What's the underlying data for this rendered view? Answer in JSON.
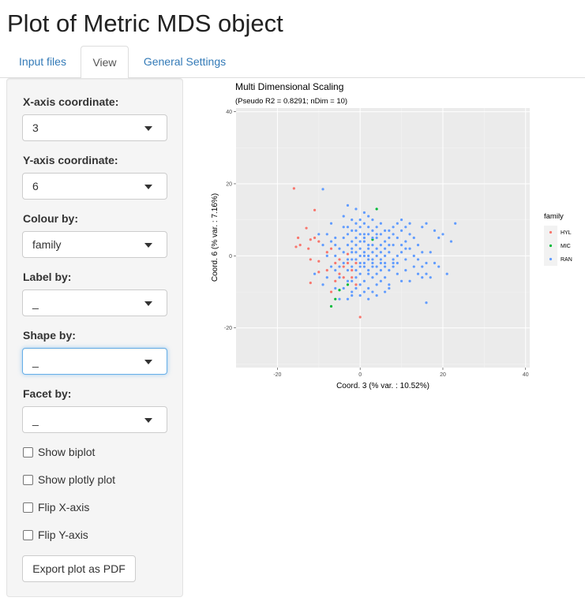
{
  "page": {
    "title": "Plot of Metric MDS object"
  },
  "tabs": [
    {
      "label": "Input files",
      "active": false
    },
    {
      "label": "View",
      "active": true
    },
    {
      "label": "General Settings",
      "active": false
    }
  ],
  "sidebar": {
    "x_axis": {
      "label": "X-axis coordinate:",
      "value": "3"
    },
    "y_axis": {
      "label": "Y-axis coordinate:",
      "value": "6"
    },
    "colour_by": {
      "label": "Colour by:",
      "value": "family"
    },
    "label_by": {
      "label": "Label by:",
      "value": "_"
    },
    "shape_by": {
      "label": "Shape by:",
      "value": "_"
    },
    "facet_by": {
      "label": "Facet by:",
      "value": "_"
    },
    "checkboxes": [
      {
        "label": "Show biplot",
        "checked": false
      },
      {
        "label": "Show plotly plot",
        "checked": false
      },
      {
        "label": "Flip X-axis",
        "checked": false
      },
      {
        "label": "Flip Y-axis",
        "checked": false
      }
    ],
    "export_label": "Export plot as PDF"
  },
  "chart_data": {
    "type": "scatter",
    "title": "Multi Dimensional Scaling",
    "subtitle": "(Pseudo R2 = 0.8291; nDim = 10)",
    "xlabel": "Coord. 3 (% var. : 10.52%)",
    "ylabel": "Coord. 6 (% var. : 7.16%)",
    "xlim": [
      -30,
      41
    ],
    "ylim": [
      -31,
      41
    ],
    "x_ticks": [
      -20,
      0,
      20,
      40
    ],
    "y_ticks": [
      -20,
      0,
      20,
      40
    ],
    "grid": true,
    "legend_position": "right",
    "legend_title": "family",
    "series": [
      {
        "name": "HYL",
        "color": "#F8766D",
        "points": [
          [
            -16,
            18.7
          ],
          [
            -11,
            12.7
          ],
          [
            -15,
            5
          ],
          [
            -14.5,
            3
          ],
          [
            -13,
            7.7
          ],
          [
            -15.5,
            2.5
          ],
          [
            -12.5,
            2
          ],
          [
            -12,
            4.5
          ],
          [
            -11,
            5
          ],
          [
            -10,
            4
          ],
          [
            -12,
            -1
          ],
          [
            -10,
            -1.5
          ],
          [
            -10,
            -4.5
          ],
          [
            -12,
            -7.5
          ],
          [
            -8,
            1
          ],
          [
            -7,
            2
          ],
          [
            -5,
            -1
          ],
          [
            -4,
            -3
          ],
          [
            -3,
            0.5
          ],
          [
            -6,
            -2
          ],
          [
            -2,
            -6
          ],
          [
            -1,
            -8
          ],
          [
            -4,
            -6
          ],
          [
            -2,
            -4
          ],
          [
            -5,
            -5
          ],
          [
            -3,
            -2
          ],
          [
            0,
            -17
          ],
          [
            -7,
            -10
          ],
          [
            -8,
            -4
          ],
          [
            -6,
            -7
          ],
          [
            -1,
            -2
          ]
        ]
      },
      {
        "name": "MIC",
        "color": "#00BA38",
        "points": [
          [
            4,
            13
          ],
          [
            3,
            4.5
          ],
          [
            -3,
            -8
          ],
          [
            -5,
            -9.5
          ],
          [
            -6,
            -12
          ],
          [
            -7,
            -14
          ]
        ]
      },
      {
        "name": "RAN",
        "color": "#619CFF",
        "points": [
          [
            -9,
            18.5
          ],
          [
            -3,
            14
          ],
          [
            -4,
            11
          ],
          [
            -2,
            10
          ],
          [
            -1,
            13
          ],
          [
            1,
            12
          ],
          [
            0,
            10
          ],
          [
            2,
            8
          ],
          [
            -7,
            9
          ],
          [
            -8,
            6
          ],
          [
            -6,
            5
          ],
          [
            -9,
            3
          ],
          [
            -10,
            6
          ],
          [
            -2,
            7
          ],
          [
            -1,
            5
          ],
          [
            0,
            6
          ],
          [
            1,
            4
          ],
          [
            2,
            2
          ],
          [
            3,
            1
          ],
          [
            4,
            0
          ],
          [
            5,
            -1
          ],
          [
            6,
            -2
          ],
          [
            7,
            1
          ],
          [
            8,
            3
          ],
          [
            9,
            5
          ],
          [
            10,
            7
          ],
          [
            11,
            4
          ],
          [
            12,
            2
          ],
          [
            13,
            0
          ],
          [
            14,
            -1
          ],
          [
            15,
            -3
          ],
          [
            16,
            -5
          ],
          [
            16,
            9
          ],
          [
            18,
            7
          ],
          [
            20,
            6
          ],
          [
            19,
            5
          ],
          [
            21,
            -5
          ],
          [
            22,
            4
          ],
          [
            23,
            9
          ],
          [
            -5,
            2
          ],
          [
            -4,
            1
          ],
          [
            -3,
            -1
          ],
          [
            -2,
            -3
          ],
          [
            -1,
            -1
          ],
          [
            0,
            0
          ],
          [
            1,
            -2
          ],
          [
            2,
            -4
          ],
          [
            3,
            -6
          ],
          [
            4,
            -8
          ],
          [
            5,
            -4
          ],
          [
            6,
            -6
          ],
          [
            7,
            -9
          ],
          [
            8,
            -3
          ],
          [
            9,
            -2
          ],
          [
            10,
            1
          ],
          [
            11,
            -4
          ],
          [
            12,
            -7
          ],
          [
            -6,
            0
          ],
          [
            -7,
            -3
          ],
          [
            -8,
            -6
          ],
          [
            -9,
            -8
          ],
          [
            -5,
            -6
          ],
          [
            -4,
            -9
          ],
          [
            -3,
            -4
          ],
          [
            -2,
            1
          ],
          [
            -1,
            3
          ],
          [
            0,
            2
          ],
          [
            1,
            0
          ],
          [
            2,
            -1
          ],
          [
            3,
            3
          ],
          [
            4,
            5
          ],
          [
            5,
            6
          ],
          [
            6,
            4
          ],
          [
            7,
            7
          ],
          [
            8,
            8
          ],
          [
            9,
            9
          ],
          [
            10,
            10
          ],
          [
            -3,
            3
          ],
          [
            -2,
            4
          ],
          [
            -1,
            7
          ],
          [
            0,
            8
          ],
          [
            1,
            9
          ],
          [
            2,
            6
          ],
          [
            3,
            7
          ],
          [
            4,
            8
          ],
          [
            5,
            9
          ],
          [
            6,
            7
          ],
          [
            7,
            5
          ],
          [
            8,
            -1
          ],
          [
            9,
            -5
          ],
          [
            10,
            -7
          ],
          [
            11,
            2
          ],
          [
            13,
            5
          ],
          [
            14,
            3
          ],
          [
            15,
            1
          ],
          [
            16,
            -2
          ],
          [
            17,
            -6
          ],
          [
            16,
            -13
          ],
          [
            -11,
            -5
          ],
          [
            -6,
            -9
          ],
          [
            -5,
            -12
          ],
          [
            -4,
            -2
          ],
          [
            -3,
            -7
          ],
          [
            -2,
            -10
          ],
          [
            -1,
            -6
          ],
          [
            0,
            -5
          ],
          [
            1,
            -7
          ],
          [
            2,
            -9
          ],
          [
            3,
            -3
          ],
          [
            4,
            -5
          ],
          [
            5,
            -7
          ],
          [
            6,
            -10
          ],
          [
            7,
            -4
          ],
          [
            8,
            -2
          ],
          [
            -7,
            4
          ],
          [
            -8,
            0
          ],
          [
            -6,
            -4
          ],
          [
            0,
            -2
          ],
          [
            1,
            -3
          ],
          [
            2,
            -5
          ],
          [
            3,
            -2
          ],
          [
            4,
            -3
          ],
          [
            5,
            1
          ],
          [
            6,
            2
          ],
          [
            7,
            3
          ],
          [
            -1,
            -4
          ],
          [
            0,
            -8
          ],
          [
            1,
            1
          ],
          [
            2,
            3
          ],
          [
            -2,
            -1
          ],
          [
            3,
            -1
          ],
          [
            4,
            2
          ],
          [
            -4,
            5
          ],
          [
            -3,
            6
          ],
          [
            -2,
            -7
          ],
          [
            0,
            4
          ],
          [
            1,
            6
          ],
          [
            2,
            11
          ],
          [
            3,
            10
          ],
          [
            -4,
            8
          ],
          [
            5,
            3
          ],
          [
            6,
            0
          ],
          [
            7,
            -8
          ],
          [
            8,
            6
          ],
          [
            9,
            0
          ],
          [
            10,
            3
          ],
          [
            11,
            -1
          ],
          [
            12,
            6
          ],
          [
            13,
            -3
          ],
          [
            14,
            -5
          ],
          [
            15,
            -6
          ],
          [
            -5,
            -3
          ],
          [
            -6,
            3
          ],
          [
            -1,
            -9
          ],
          [
            0,
            -11
          ],
          [
            1,
            -10
          ],
          [
            -3,
            -12
          ],
          [
            -2,
            -11
          ],
          [
            2,
            -12
          ],
          [
            3,
            -10
          ],
          [
            4,
            -11
          ],
          [
            1,
            5
          ],
          [
            -1,
            1
          ],
          [
            2,
            0
          ],
          [
            0,
            -3
          ],
          [
            -2,
            2
          ],
          [
            3,
            5
          ],
          [
            4,
            6
          ],
          [
            5,
            -2
          ],
          [
            6,
            -3
          ],
          [
            -1,
            9
          ],
          [
            -3,
            8
          ],
          [
            17,
            1
          ],
          [
            18,
            -2
          ],
          [
            19,
            -3
          ],
          [
            15,
            8
          ],
          [
            12,
            9
          ],
          [
            11,
            8
          ]
        ]
      }
    ]
  }
}
